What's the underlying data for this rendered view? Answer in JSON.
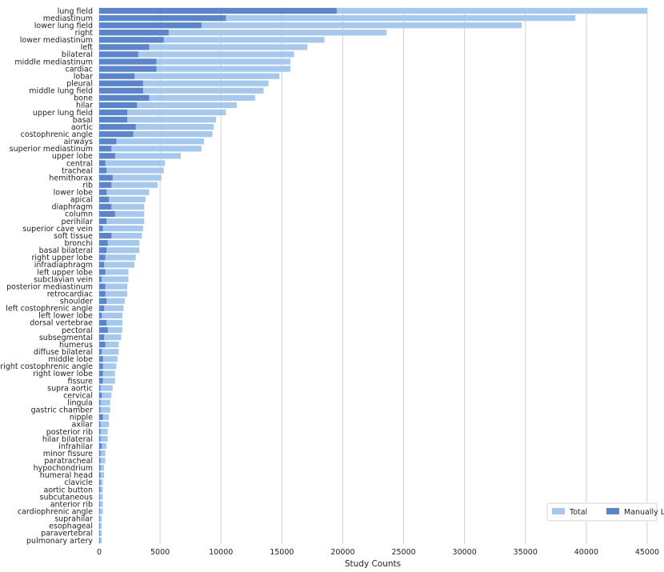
{
  "chart_data": {
    "type": "bar",
    "orientation": "horizontal",
    "xlabel": "Study Counts",
    "ylabel": "",
    "xlim": [
      0,
      45000
    ],
    "xticks": [
      0,
      5000,
      10000,
      15000,
      20000,
      25000,
      30000,
      35000,
      40000,
      45000
    ],
    "grid": "vertical",
    "legend_position": "bottom-right",
    "categories": [
      "lung field",
      "mediastinum",
      "lower lung field",
      "right",
      "lower mediastinum",
      "left",
      "bilateral",
      "middle mediastinum",
      "cardiac",
      "lobar",
      "pleural",
      "middle lung field",
      "bone",
      "hilar",
      "upper lung field",
      "basal",
      "aortic",
      "costophrenic angle",
      "airways",
      "superior mediastinum",
      "upper lobe",
      "central",
      "tracheal",
      "hemithorax",
      "rib",
      "lower lobe",
      "apical",
      "diaphragm",
      "column",
      "perihilar",
      "superior cave vein",
      "soft tissue",
      "bronchi",
      "basal bilateral",
      "right upper lobe",
      "infradiaphragm",
      "left upper lobe",
      "subclavian vein",
      "posterior mediastinum",
      "retrocardiac",
      "shoulder",
      "left costophrenic angle",
      "left lower lobe",
      "dorsal vertebrae",
      "pectoral",
      "subsegmental",
      "humerus",
      "diffuse bilateral",
      "middle lobe",
      "right costophrenic angle",
      "right lower lobe",
      "fissure",
      "supra aortic",
      "cervical",
      "lingula",
      "gastric chamber",
      "nipple",
      "axilar",
      "posterior rib",
      "hilar bilateral",
      "infrahilar",
      "minor fissure",
      "paratracheal",
      "hypochondrium",
      "humeral head",
      "clavicle",
      "aortic button",
      "subcutaneous",
      "anterior rib",
      "cardiophrenic angle",
      "suprahilar",
      "esophageal",
      "paravertebral",
      "pulmonary artery"
    ],
    "series": [
      {
        "name": "Total",
        "color": "#a6c8ec",
        "values": [
          45000,
          39100,
          34700,
          23600,
          18500,
          17100,
          16000,
          15700,
          15700,
          14800,
          13900,
          13500,
          12800,
          11300,
          10400,
          9600,
          9400,
          9300,
          8600,
          8400,
          6700,
          5400,
          5300,
          5100,
          4800,
          4100,
          3800,
          3700,
          3700,
          3700,
          3600,
          3500,
          3300,
          3300,
          3000,
          2900,
          2400,
          2400,
          2300,
          2300,
          2100,
          2000,
          1900,
          1900,
          1900,
          1800,
          1600,
          1600,
          1500,
          1400,
          1300,
          1300,
          1100,
          1000,
          900,
          900,
          800,
          800,
          700,
          700,
          600,
          500,
          500,
          400,
          400,
          300,
          300,
          300,
          300,
          300,
          200,
          200,
          200,
          200
        ]
      },
      {
        "name": "Manually Labeled",
        "color": "#5b85c8",
        "values": [
          19500,
          10400,
          8400,
          5700,
          5300,
          4100,
          3200,
          4700,
          4700,
          2900,
          3600,
          3600,
          4100,
          3100,
          2300,
          2300,
          3000,
          2800,
          1400,
          1000,
          1300,
          500,
          600,
          1100,
          1000,
          600,
          800,
          1000,
          1300,
          600,
          300,
          1000,
          700,
          600,
          500,
          400,
          500,
          200,
          500,
          500,
          600,
          400,
          200,
          600,
          700,
          400,
          500,
          200,
          300,
          300,
          300,
          300,
          100,
          200,
          100,
          100,
          300,
          100,
          100,
          100,
          200,
          100,
          100,
          100,
          100,
          100,
          100,
          50,
          50,
          50,
          50,
          50,
          50,
          50
        ]
      }
    ]
  }
}
